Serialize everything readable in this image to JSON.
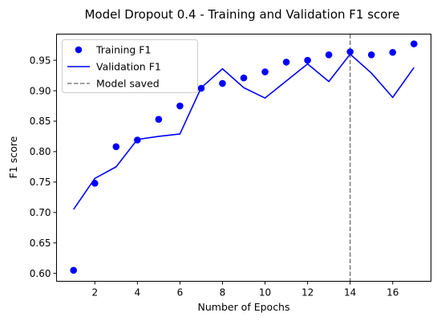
{
  "chart_data": {
    "type": "line",
    "title": "Model Dropout 0.4 - Training and Validation F1 score",
    "xlabel": "Number of Epochs",
    "ylabel": "F1 score",
    "xlim": [
      0.2,
      17.8
    ],
    "ylim": [
      0.587,
      0.993
    ],
    "xticks": [
      2,
      4,
      6,
      8,
      10,
      12,
      14,
      16
    ],
    "yticks": [
      0.6,
      0.65,
      0.7,
      0.75,
      0.8,
      0.85,
      0.9,
      0.95
    ],
    "x": [
      1,
      2,
      3,
      4,
      5,
      6,
      7,
      8,
      9,
      10,
      11,
      12,
      13,
      14,
      15,
      16,
      17
    ],
    "series": [
      {
        "name": "Training F1",
        "style": "markers",
        "color": "#0000ff",
        "values": [
          0.605,
          0.748,
          0.808,
          0.819,
          0.853,
          0.875,
          0.904,
          0.912,
          0.921,
          0.931,
          0.947,
          0.95,
          0.959,
          0.964,
          0.959,
          0.963,
          0.977
        ]
      },
      {
        "name": "Validation F1",
        "style": "line",
        "color": "#0000ff",
        "values": [
          0.705,
          0.756,
          0.775,
          0.82,
          0.825,
          0.829,
          0.905,
          0.936,
          0.905,
          0.888,
          0.916,
          0.944,
          0.915,
          0.96,
          0.929,
          0.889,
          0.938
        ]
      }
    ],
    "vline": {
      "x": 14,
      "name": "Model saved",
      "color": "#808080",
      "style": "dashed"
    },
    "legend": {
      "placement": "upper-left",
      "entries": [
        "Training F1",
        "Validation F1",
        "Model saved"
      ]
    },
    "grid": false
  }
}
